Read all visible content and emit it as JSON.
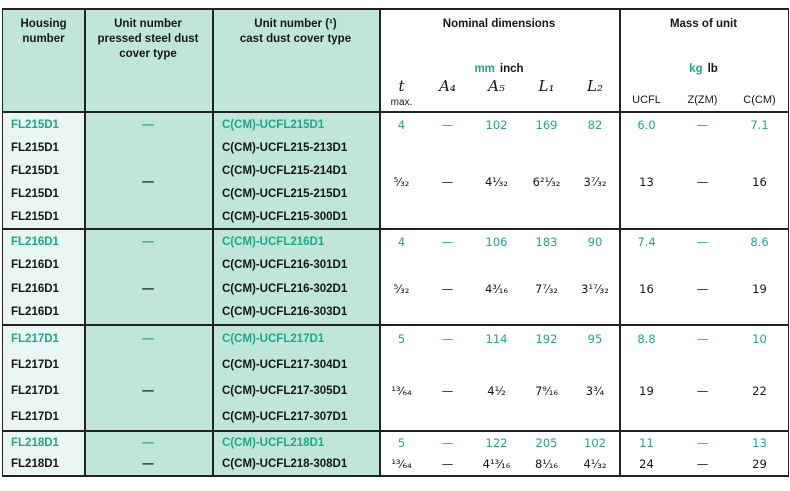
{
  "colors": {
    "teal": "#1ca88b",
    "mint": "#bfe6d8",
    "pale": "#e9f6f1",
    "line": "#222222"
  },
  "header": {
    "housing": "Housing\nnumber",
    "pressed": "Unit number\npressed steel dust\ncover type",
    "cast": "Unit number (¹)\ncast dust cover type",
    "nominal": "Nominal dimensions",
    "unit_mm": "mm",
    "unit_inch": "inch",
    "dims": {
      "t": "t",
      "t_sub": "max.",
      "a4": "A₄",
      "a5": "A₅",
      "l1": "L₁",
      "l2": "L₂"
    },
    "mass": "Mass of unit",
    "unit_kg": "kg",
    "unit_lb": "lb",
    "mass_cols": {
      "ucfl": "UCFL",
      "zzm": "Z(ZM)",
      "ccm": "C(CM)"
    }
  },
  "blocks": [
    {
      "housings": [
        "FL215D1",
        "FL215D1",
        "FL215D1",
        "FL215D1",
        "FL215D1"
      ],
      "pressed": {
        "mm": "—",
        "inch": "—"
      },
      "casts": [
        "C(CM)-UCFL215D1",
        "C(CM)-UCFL215-213D1",
        "C(CM)-UCFL215-214D1",
        "C(CM)-UCFL215-215D1",
        "C(CM)-UCFL215-300D1"
      ],
      "mm": [
        "4",
        "—",
        "102",
        "169",
        "82",
        "6.0",
        "—",
        "7.1"
      ],
      "inch": [
        "⁵⁄₃₂",
        "—",
        "4¹⁄₃₂",
        "6²¹⁄₃₂",
        "3⁷⁄₃₂",
        "13",
        "—",
        "16"
      ]
    },
    {
      "housings": [
        "FL216D1",
        "FL216D1",
        "FL216D1",
        "FL216D1"
      ],
      "pressed": {
        "mm": "—",
        "inch": "—"
      },
      "casts": [
        "C(CM)-UCFL216D1",
        "C(CM)-UCFL216-301D1",
        "C(CM)-UCFL216-302D1",
        "C(CM)-UCFL216-303D1"
      ],
      "mm": [
        "4",
        "—",
        "106",
        "183",
        "90",
        "7.4",
        "—",
        "8.6"
      ],
      "inch": [
        "⁵⁄₃₂",
        "—",
        "4³⁄₁₆",
        "7⁷⁄₃₂",
        "3¹⁷⁄₃₂",
        "16",
        "—",
        "19"
      ]
    },
    {
      "housings": [
        "FL217D1",
        "FL217D1",
        "FL217D1",
        "FL217D1"
      ],
      "pressed": {
        "mm": "—",
        "inch": "—"
      },
      "casts": [
        "C(CM)-UCFL217D1",
        "C(CM)-UCFL217-304D1",
        "C(CM)-UCFL217-305D1",
        "C(CM)-UCFL217-307D1"
      ],
      "mm": [
        "5",
        "—",
        "114",
        "192",
        "95",
        "8.8",
        "—",
        "10"
      ],
      "inch": [
        "¹³⁄₆₄",
        "—",
        "4¹⁄₂",
        "7⁹⁄₁₆",
        "3³⁄₄",
        "19",
        "—",
        "22"
      ]
    },
    {
      "housings": [
        "FL218D1",
        "FL218D1"
      ],
      "pressed": {
        "mm": "—",
        "inch": "—"
      },
      "casts": [
        "C(CM)-UCFL218D1",
        "C(CM)-UCFL218-308D1"
      ],
      "mm": [
        "5",
        "—",
        "122",
        "205",
        "102",
        "11",
        "—",
        "13"
      ],
      "inch": [
        "¹³⁄₆₄",
        "—",
        "4¹³⁄₁₆",
        "8¹⁄₁₆",
        "4¹⁄₃₂",
        "24",
        "—",
        "29"
      ]
    }
  ]
}
